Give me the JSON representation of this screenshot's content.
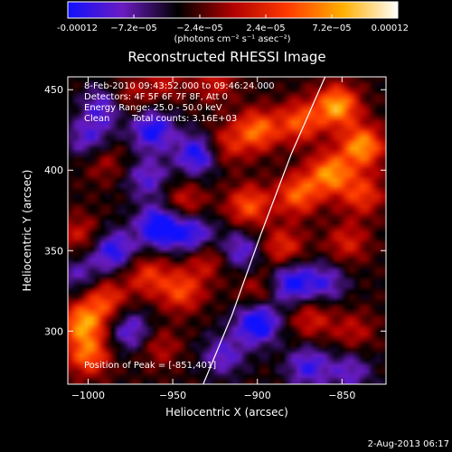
{
  "colorbar": {
    "tick_labels": [
      "-0.00012",
      "−7.2e−05",
      "−2.4e−05",
      "2.4e−05",
      "7.2e−05",
      "0.00012"
    ],
    "tick_values": [
      -0.00012,
      -7.2e-05,
      -2.4e-05,
      2.4e-05,
      7.2e-05,
      0.00012
    ],
    "units": "(photons cm⁻² s⁻¹ asec⁻²)",
    "range": [
      -0.00012,
      0.00012
    ],
    "colors": [
      "#1010ff",
      "#6a1cc0",
      "#000000",
      "#b00000",
      "#ff3a00",
      "#ffb000",
      "#ffffff"
    ]
  },
  "chart_data": {
    "type": "heatmap",
    "title": "Reconstructed RHESSI Image",
    "xlabel": "Heliocentric X (arcsec)",
    "ylabel": "Heliocentric Y (arcsec)",
    "xlim": [
      -1012,
      -824
    ],
    "ylim": [
      267,
      458
    ],
    "xticks": [
      -1000,
      -950,
      -900,
      -850
    ],
    "yticks": [
      300,
      350,
      400,
      450
    ],
    "limb_line": {
      "points": [
        [
          -932,
          267
        ],
        [
          -915,
          310
        ],
        [
          -898,
          360
        ],
        [
          -880,
          410
        ],
        [
          -860,
          458
        ]
      ],
      "color": "#ffffff"
    },
    "peak_position": [
      -851,
      401
    ],
    "annotations": {
      "time_range": "8-Feb-2010 09:43:52.000 to 09:46:24.000",
      "detectors": "Detectors: 4F 5F 6F 7F 8F, Att 0",
      "energy": "Energy Range: 25.0 - 50.0 keV",
      "method": "Clean",
      "counts": "Total counts: 3.16E+03",
      "peak": "Position of Peak = [-851,401]"
    },
    "blobs": [
      {
        "x": -853,
        "y": 440,
        "v": 1.0
      },
      {
        "x": -838,
        "y": 415,
        "v": 0.95
      },
      {
        "x": -857,
        "y": 398,
        "v": 0.9
      },
      {
        "x": -876,
        "y": 385,
        "v": 0.75
      },
      {
        "x": -900,
        "y": 425,
        "v": 0.8
      },
      {
        "x": -875,
        "y": 430,
        "v": 0.7
      },
      {
        "x": -905,
        "y": 378,
        "v": 0.7
      },
      {
        "x": -885,
        "y": 352,
        "v": 0.55
      },
      {
        "x": -847,
        "y": 355,
        "v": 0.45
      },
      {
        "x": -838,
        "y": 385,
        "v": 0.6
      },
      {
        "x": -920,
        "y": 415,
        "v": 0.5
      },
      {
        "x": -943,
        "y": 380,
        "v": 0.45
      },
      {
        "x": -978,
        "y": 445,
        "v": 0.4
      },
      {
        "x": -1003,
        "y": 305,
        "v": 0.9
      },
      {
        "x": -1000,
        "y": 285,
        "v": 0.75
      },
      {
        "x": -990,
        "y": 320,
        "v": 0.6
      },
      {
        "x": -965,
        "y": 335,
        "v": 0.55
      },
      {
        "x": -945,
        "y": 325,
        "v": 0.65
      },
      {
        "x": -930,
        "y": 345,
        "v": 0.45
      },
      {
        "x": -1005,
        "y": 360,
        "v": 0.4
      },
      {
        "x": -958,
        "y": 290,
        "v": 0.35
      },
      {
        "x": -900,
        "y": 325,
        "v": 0.35
      },
      {
        "x": -868,
        "y": 308,
        "v": 0.45
      },
      {
        "x": -843,
        "y": 300,
        "v": 0.35
      },
      {
        "x": -990,
        "y": 405,
        "v": 0.3
      },
      {
        "x": -955,
        "y": 455,
        "v": 0.35
      },
      {
        "x": -925,
        "y": 455,
        "v": 0.4
      },
      {
        "x": -935,
        "y": 410,
        "v": -0.8
      },
      {
        "x": -962,
        "y": 425,
        "v": -0.75
      },
      {
        "x": -958,
        "y": 365,
        "v": -0.95
      },
      {
        "x": -938,
        "y": 360,
        "v": -0.7
      },
      {
        "x": -900,
        "y": 305,
        "v": -0.9
      },
      {
        "x": -880,
        "y": 330,
        "v": -0.75
      },
      {
        "x": -860,
        "y": 330,
        "v": -0.5
      },
      {
        "x": -985,
        "y": 350,
        "v": -0.7
      },
      {
        "x": -975,
        "y": 300,
        "v": -0.55
      },
      {
        "x": -990,
        "y": 440,
        "v": -0.6
      },
      {
        "x": -1000,
        "y": 420,
        "v": -0.5
      },
      {
        "x": -870,
        "y": 278,
        "v": -0.6
      },
      {
        "x": -910,
        "y": 350,
        "v": -0.55
      },
      {
        "x": -965,
        "y": 395,
        "v": -0.5
      },
      {
        "x": -920,
        "y": 285,
        "v": -0.5
      },
      {
        "x": -845,
        "y": 275,
        "v": -0.45
      },
      {
        "x": -1005,
        "y": 335,
        "v": -0.4
      }
    ]
  },
  "footer": {
    "date": "2-Aug-2013 06:17"
  }
}
